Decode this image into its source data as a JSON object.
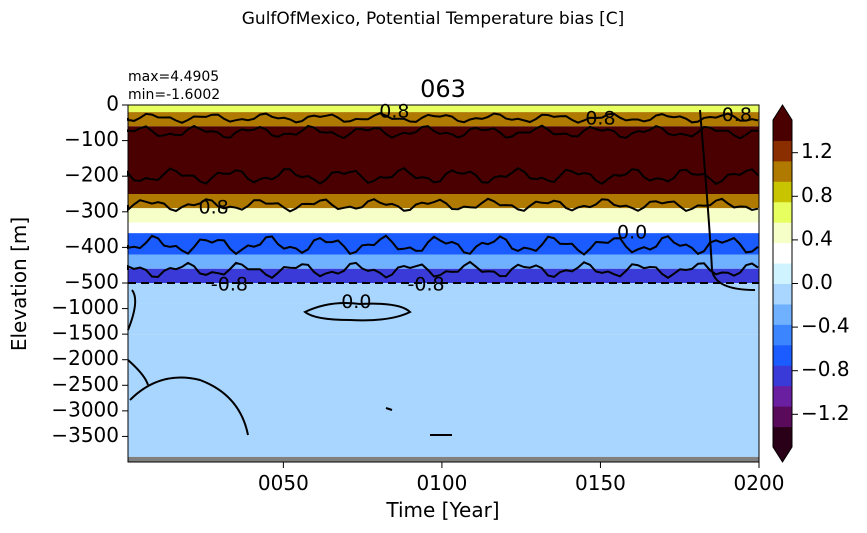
{
  "chart_data": {
    "type": "heatmap",
    "suptitle": "GulfOfMexico, Potential Temperature bias [C]",
    "title": "063",
    "stats": {
      "max": "max=4.4905",
      "min": "min=-1.6002"
    },
    "xlabel": "Time [Year]",
    "ylabel": "Elevation [m]",
    "x_range": [
      1,
      200
    ],
    "x_ticks": [
      {
        "value": 50,
        "label": "0050"
      },
      {
        "value": 100,
        "label": "0100"
      },
      {
        "value": 150,
        "label": "0150"
      },
      {
        "value": 200,
        "label": "0200"
      }
    ],
    "y_axis": {
      "upper": {
        "range": [
          -500,
          0
        ],
        "ticks": [
          0,
          -100,
          -200,
          -300,
          -400,
          -500
        ]
      },
      "lower": {
        "range": [
          -4000,
          -500
        ],
        "ticks": [
          -1000,
          -1500,
          -2000,
          -2500,
          -3000,
          -3500
        ]
      }
    },
    "y_tick_labels": [
      "0",
      "−100",
      "−200",
      "−300",
      "−400",
      "−500",
      "−1000",
      "−1500",
      "−2000",
      "−2500",
      "−3000",
      "−3500"
    ],
    "colorbar": {
      "range": [
        -1.5,
        1.5
      ],
      "extend": "both",
      "ticks": [
        1.2,
        0.8,
        0.4,
        0.0,
        -0.4,
        -0.8,
        -1.2
      ],
      "tick_labels": [
        "1.2",
        "0.8",
        "0.4",
        "0.0",
        "−0.4",
        "−0.8",
        "−1.2"
      ],
      "colors": [
        "#2a0019",
        "#5a0a5a",
        "#6a1fa0",
        "#3a3ad8",
        "#1a5cff",
        "#3b86ff",
        "#6fb0ff",
        "#a9d6ff",
        "#d0f4ff",
        "#ffffff",
        "#f6ffc8",
        "#e8ff60",
        "#c8c400",
        "#b07a00",
        "#8a2e00",
        "#4a0000"
      ]
    },
    "depth_bands": [
      {
        "top": 0,
        "bottom": -20,
        "value": 0.7
      },
      {
        "top": -20,
        "bottom": -60,
        "value": 1.0
      },
      {
        "top": -60,
        "bottom": -250,
        "value": 1.6
      },
      {
        "top": -250,
        "bottom": -290,
        "value": 1.0
      },
      {
        "top": -290,
        "bottom": -330,
        "value": 0.5
      },
      {
        "top": -330,
        "bottom": -360,
        "value": 0.3
      },
      {
        "top": -360,
        "bottom": -420,
        "value": -0.6
      },
      {
        "top": -420,
        "bottom": -460,
        "value": -0.3
      },
      {
        "top": -460,
        "bottom": -500,
        "value": -0.9
      },
      {
        "top": -500,
        "bottom": -900,
        "value": -0.15
      },
      {
        "top": -900,
        "bottom": -1500,
        "value": -0.08
      },
      {
        "top": -1500,
        "bottom": -3900,
        "value": -0.05
      }
    ],
    "bottom_mask": {
      "top": -3900,
      "bottom": -4000,
      "color": "#808080"
    },
    "contour_labels": [
      {
        "text": "0.8",
        "x": 85,
        "y": -20
      },
      {
        "text": "0.8",
        "x": 150,
        "y": -40
      },
      {
        "text": "0.8",
        "x": 193,
        "y": -30
      },
      {
        "text": "0.8",
        "x": 28,
        "y": -290
      },
      {
        "text": "0.0",
        "x": 160,
        "y": -360
      },
      {
        "text": "-0.8",
        "x": 33,
        "y": -540
      },
      {
        "text": "-0.8",
        "x": 95,
        "y": -540
      },
      {
        "text": "0.0",
        "x": 73,
        "y": -880
      }
    ],
    "dashed_line_y": -500
  }
}
